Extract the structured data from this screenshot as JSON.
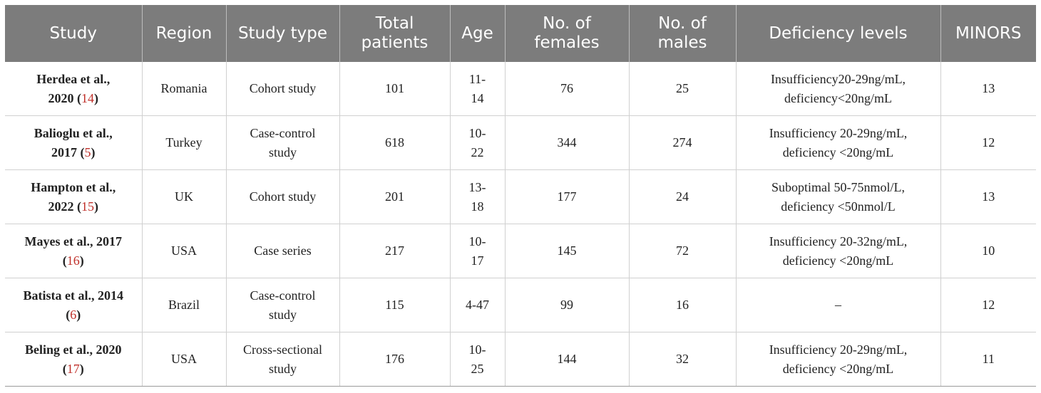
{
  "headers": {
    "study": "Study",
    "region": "Region",
    "study_type": "Study type",
    "total_patients": [
      "Total",
      "patients"
    ],
    "age": "Age",
    "females": [
      "No. of",
      "females"
    ],
    "males": [
      "No. of",
      "males"
    ],
    "deficiency": "Deficiency levels",
    "minors": "MINORS"
  },
  "rows": [
    {
      "study_l1": "Herdea et al.,",
      "study_l2": "2020 (",
      "ref": "14",
      "study_close": ")",
      "region": "Romania",
      "type_l1": "Cohort study",
      "type_l2": "",
      "total": "101",
      "age_l1": "11-",
      "age_l2": "14",
      "females": "76",
      "males": "25",
      "def_l1": "Insufficiency20-29ng/mL,",
      "def_l2": "deficiency<20ng/mL",
      "minors": "13"
    },
    {
      "study_l1": "Balioglu et al.,",
      "study_l2": "2017 (",
      "ref": "5",
      "study_close": ")",
      "region": "Turkey",
      "type_l1": "Case-control",
      "type_l2": "study",
      "total": "618",
      "age_l1": "10-",
      "age_l2": "22",
      "females": "344",
      "males": "274",
      "def_l1": "Insufficiency 20-29ng/mL,",
      "def_l2": "deficiency <20ng/mL",
      "minors": "12"
    },
    {
      "study_l1": "Hampton et al.,",
      "study_l2": "2022 (",
      "ref": "15",
      "study_close": ")",
      "region": "UK",
      "type_l1": "Cohort study",
      "type_l2": "",
      "total": "201",
      "age_l1": "13-",
      "age_l2": "18",
      "females": "177",
      "males": "24",
      "def_l1": "Suboptimal 50-75nmol/L,",
      "def_l2": "deficiency <50nmol/L",
      "minors": "13"
    },
    {
      "study_l1": "Mayes et al., 2017",
      "study_l2": "(",
      "ref": "16",
      "study_close": ")",
      "region": "USA",
      "type_l1": "Case series",
      "type_l2": "",
      "total": "217",
      "age_l1": "10-",
      "age_l2": "17",
      "females": "145",
      "males": "72",
      "def_l1": "Insufficiency 20-32ng/mL,",
      "def_l2": "deficiency <20ng/mL",
      "minors": "10"
    },
    {
      "study_l1": "Batista et al., 2014",
      "study_l2": "(",
      "ref": "6",
      "study_close": ")",
      "region": "Brazil",
      "type_l1": "Case-control",
      "type_l2": "study",
      "total": "115",
      "age_l1": "4-47",
      "age_l2": "",
      "females": "99",
      "males": "16",
      "def_l1": "–",
      "def_l2": "",
      "minors": "12"
    },
    {
      "study_l1": "Beling et al., 2020",
      "study_l2": "(",
      "ref": "17",
      "study_close": ")",
      "region": "USA",
      "type_l1": "Cross-sectional",
      "type_l2": "study",
      "total": "176",
      "age_l1": "10-",
      "age_l2": "25",
      "females": "144",
      "males": "32",
      "def_l1": "Insufficiency 20-29ng/mL,",
      "def_l2": "deficiency <20ng/mL",
      "minors": "11"
    }
  ]
}
